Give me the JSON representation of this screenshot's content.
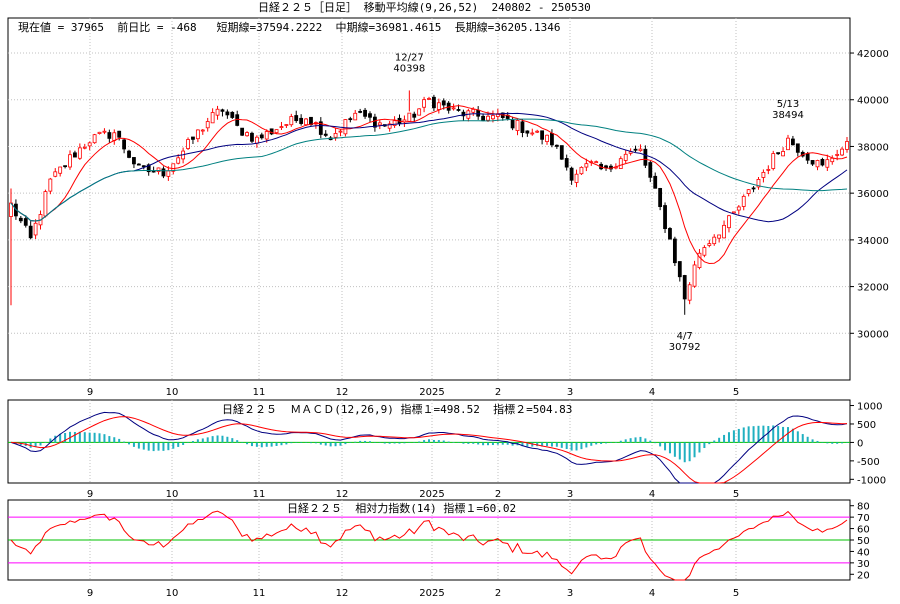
{
  "colors": {
    "up": "#ff0000",
    "down": "#000000",
    "ma_short": "#ff0000",
    "ma_mid": "#000080",
    "ma_long": "#008080",
    "macd": "#000080",
    "signal": "#ff0000",
    "hist": "#20b0c0",
    "zero": "#00c000",
    "rsi": "#ff0000",
    "rsi_band": "#ff00ff",
    "rsi_mid": "#00c000",
    "grid": "#c0c0c0"
  },
  "price_panel": {
    "title": "日経２２５［日足］ 移動平均線(9,26,52)  240802 - 250530",
    "info": "現在値 = 37965  前日比 = -468   短期線=37594.2222  中期線=36981.4615  長期線=36205.1346",
    "annotations": [
      {
        "label": "12/27",
        "value": "40398"
      },
      {
        "label": "5/13",
        "value": "38494"
      },
      {
        "label": "4/7",
        "value": "30792"
      }
    ]
  },
  "macd_panel": {
    "title": "日経２２５  ＭＡＣＤ(12,26,9) 指標１=498.52  指標２=504.83"
  },
  "rsi_panel": {
    "title": "日経２２５  相対力指数(14) 指標１=60.02"
  },
  "chart_data": [
    {
      "type": "line",
      "subtype": "candlestick",
      "months": [
        "9",
        "10",
        "11",
        "12",
        "2025",
        "2",
        "3",
        "4",
        "5"
      ],
      "y_ticks": [
        30000,
        32000,
        34000,
        36000,
        38000,
        40000,
        42000
      ],
      "ylim": [
        28000,
        43500
      ],
      "grid": true,
      "waypoints": [
        {
          "i": 0,
          "v": 35500
        },
        {
          "i": 4,
          "v": 34000
        },
        {
          "i": 8,
          "v": 36500
        },
        {
          "i": 12,
          "v": 37500
        },
        {
          "i": 16,
          "v": 38300
        },
        {
          "i": 21,
          "v": 38600
        },
        {
          "i": 26,
          "v": 37000
        },
        {
          "i": 31,
          "v": 36900
        },
        {
          "i": 35,
          "v": 37800
        },
        {
          "i": 40,
          "v": 39100
        },
        {
          "i": 43,
          "v": 39600
        },
        {
          "i": 46,
          "v": 38800
        },
        {
          "i": 50,
          "v": 38300
        },
        {
          "i": 55,
          "v": 38900
        },
        {
          "i": 60,
          "v": 39300
        },
        {
          "i": 65,
          "v": 38400
        },
        {
          "i": 70,
          "v": 39400
        },
        {
          "i": 76,
          "v": 38900
        },
        {
          "i": 81,
          "v": 39200
        },
        {
          "i": 85,
          "v": 40000
        },
        {
          "i": 90,
          "v": 39500
        },
        {
          "i": 95,
          "v": 39300
        },
        {
          "i": 100,
          "v": 39200
        },
        {
          "i": 105,
          "v": 38700
        },
        {
          "i": 110,
          "v": 38200
        },
        {
          "i": 114,
          "v": 36800
        },
        {
          "i": 118,
          "v": 37200
        },
        {
          "i": 121,
          "v": 36900
        },
        {
          "i": 124,
          "v": 37600
        },
        {
          "i": 128,
          "v": 37800
        },
        {
          "i": 131,
          "v": 36000
        },
        {
          "i": 134,
          "v": 34000
        },
        {
          "i": 137,
          "v": 31500
        },
        {
          "i": 140,
          "v": 33500
        },
        {
          "i": 143,
          "v": 34200
        },
        {
          "i": 146,
          "v": 34800
        },
        {
          "i": 150,
          "v": 36000
        },
        {
          "i": 155,
          "v": 37500
        },
        {
          "i": 158,
          "v": 38300
        },
        {
          "i": 162,
          "v": 37600
        },
        {
          "i": 165,
          "v": 37100
        },
        {
          "i": 168,
          "v": 37800
        },
        {
          "i": 170,
          "v": 38000
        }
      ],
      "spikes": [
        {
          "i": 0,
          "high": 36200,
          "low": 31200
        },
        {
          "i": 81,
          "high": 40398,
          "low": 39500
        },
        {
          "i": 137,
          "high": 32500,
          "low": 30792
        },
        {
          "i": 158,
          "high": 38494,
          "low": 37900
        }
      ],
      "series": [
        {
          "name": "短期線",
          "period": 9
        },
        {
          "name": "中期線",
          "period": 26
        },
        {
          "name": "長期線",
          "period": 52
        }
      ]
    },
    {
      "type": "bar",
      "subtype": "macd",
      "months": [
        "9",
        "10",
        "11",
        "12",
        "2025",
        "2",
        "3",
        "4",
        "5"
      ],
      "y_ticks": [
        1000,
        500,
        0,
        -500,
        -1000
      ],
      "ylim": [
        -1100,
        1150
      ]
    },
    {
      "type": "line",
      "subtype": "rsi",
      "months": [
        "9",
        "10",
        "11",
        "12",
        "2025",
        "2",
        "3",
        "4",
        "5"
      ],
      "y_ticks": [
        20,
        30,
        40,
        50,
        60,
        70,
        80
      ],
      "ylim": [
        15,
        85
      ],
      "bands": [
        70,
        50,
        30
      ]
    }
  ]
}
